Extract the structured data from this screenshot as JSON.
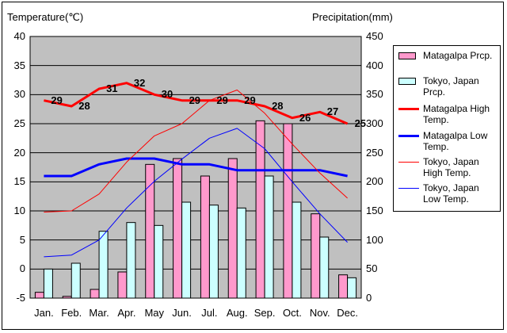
{
  "chart_data": {
    "type": "bar",
    "left_axis_title": "Temperature(℃)",
    "right_axis_title": "Precipitation(mm)",
    "categories": [
      "Jan.",
      "Feb.",
      "Mar.",
      "Apr.",
      "May",
      "Jun.",
      "Jul.",
      "Aug.",
      "Sep.",
      "Oct.",
      "Nov.",
      "Dec."
    ],
    "left_axis": {
      "min": -5,
      "max": 40,
      "step": 5
    },
    "right_axis": {
      "min": 0,
      "max": 450,
      "step": 50
    },
    "grid": true,
    "legend_position": "right",
    "bar_series": [
      {
        "name": "Matagalpa Prcp.",
        "color": "#ff99cc",
        "values": [
          10,
          3,
          15,
          45,
          230,
          240,
          210,
          240,
          305,
          300,
          145,
          40
        ]
      },
      {
        "name": "Tokyo, Japan Prcp.",
        "color": "#ccffff",
        "values": [
          50,
          60,
          115,
          130,
          125,
          165,
          160,
          155,
          210,
          165,
          105,
          35
        ]
      }
    ],
    "line_series": [
      {
        "name": "Matagalpa High Temp.",
        "color": "#ff0000",
        "width": 3,
        "values": [
          29,
          28,
          31,
          32,
          30,
          29,
          29,
          29,
          28,
          26,
          27,
          25
        ],
        "labels": [
          "29",
          "28",
          "31",
          "32",
          "30",
          "29",
          "29",
          "29",
          "28",
          "26",
          "27",
          "25"
        ]
      },
      {
        "name": "Matagalpa Low Temp.",
        "color": "#0000ff",
        "width": 3,
        "values": [
          16,
          16,
          18,
          19,
          19,
          18,
          18,
          17,
          17,
          17,
          17,
          16
        ]
      },
      {
        "name": "Tokyo, Japan High Temp.",
        "color": "#ff0000",
        "width": 1,
        "values": [
          9.8,
          10,
          12.9,
          18.4,
          22.9,
          25,
          29,
          30.8,
          26.8,
          21.5,
          16.5,
          12.2
        ]
      },
      {
        "name": "Tokyo, Japan Low Temp.",
        "color": "#0000ff",
        "width": 1,
        "values": [
          2.1,
          2.4,
          5,
          10.5,
          15.1,
          18.9,
          22.5,
          24.2,
          20.7,
          15,
          9.5,
          4.6
        ]
      }
    ],
    "legend_labels": [
      [
        "Matagalpa Prcp."
      ],
      [
        "Tokyo, Japan",
        "Prcp."
      ],
      [
        "Matagalpa High",
        "Temp."
      ],
      [
        "Matagalpa Low",
        "Temp."
      ],
      [
        "Tokyo, Japan",
        "High Temp."
      ],
      [
        "Tokyo, Japan",
        "Low Temp."
      ]
    ]
  }
}
